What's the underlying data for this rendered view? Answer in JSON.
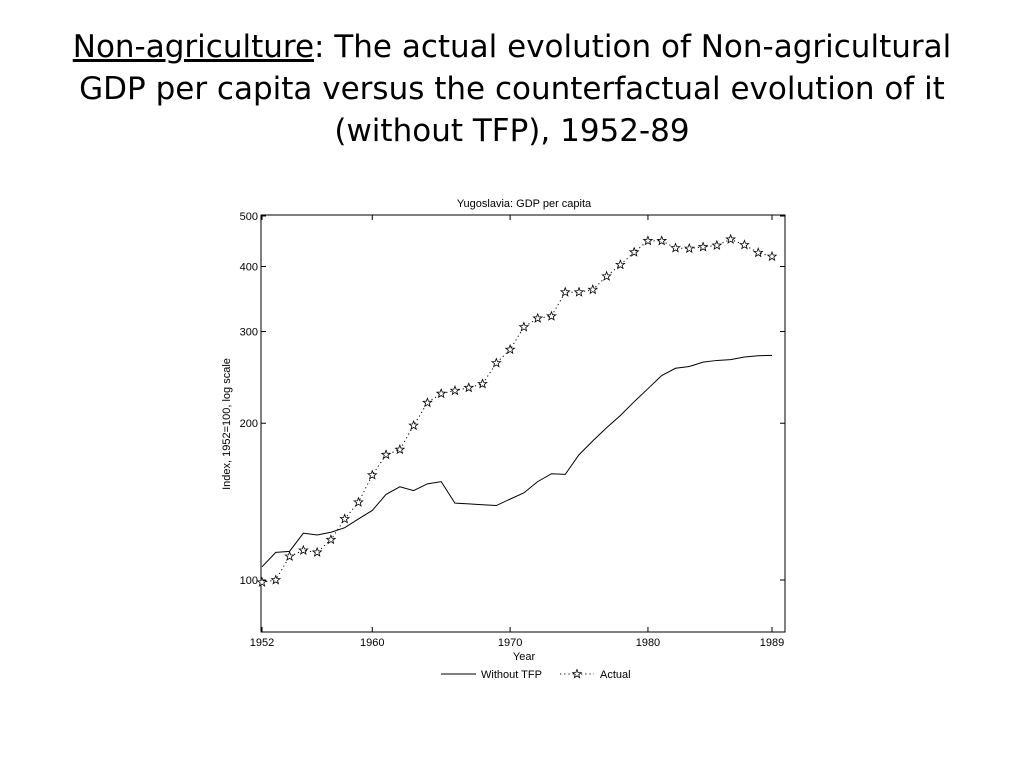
{
  "slide": {
    "title_keyword": "Non-agriculture",
    "title_rest": ": The actual evolution of Non-agricultural GDP per capita versus the counterfactual evolution of it (without TFP), 1952-89"
  },
  "chart_data": {
    "type": "line",
    "title": "Yugoslavia: GDP per capita",
    "xlabel": "Year",
    "ylabel": "Index, 1952=100, log scale",
    "yscale": "log",
    "xlim": [
      1952,
      1989
    ],
    "ylim": [
      80,
      500
    ],
    "xticks": [
      1952,
      1960,
      1970,
      1980,
      1989
    ],
    "yticks": [
      100,
      200,
      300,
      400,
      500
    ],
    "grid": false,
    "legend_position": "bottom-center",
    "x": [
      1952,
      1953,
      1954,
      1955,
      1956,
      1957,
      1958,
      1959,
      1960,
      1961,
      1962,
      1963,
      1964,
      1965,
      1966,
      1967,
      1968,
      1969,
      1970,
      1971,
      1972,
      1973,
      1974,
      1975,
      1976,
      1977,
      1978,
      1979,
      1980,
      1981,
      1982,
      1983,
      1984,
      1985,
      1986,
      1987,
      1988,
      1989
    ],
    "series": [
      {
        "name": "Without TFP",
        "style": "solid",
        "color": "#000000",
        "values": [
          106,
          113,
          113.5,
          123,
          122,
          123.5,
          126,
          131,
          136,
          146,
          151,
          148.5,
          153,
          154.5,
          140.5,
          140,
          139.5,
          139,
          143,
          147,
          154.5,
          160,
          159.5,
          174,
          185,
          196,
          207,
          220,
          233,
          247,
          255,
          257,
          262,
          264,
          265,
          268,
          269.5,
          270
        ]
      },
      {
        "name": "Actual",
        "style": "dotted",
        "marker": "star",
        "color": "#000000",
        "values": [
          99,
          100,
          111,
          114,
          113,
          119.5,
          131,
          141,
          159,
          174,
          178,
          198,
          219,
          228,
          231,
          234,
          238,
          261,
          277,
          306,
          318,
          321,
          357,
          357,
          361,
          383,
          403,
          426,
          448,
          448,
          434,
          433,
          436,
          439,
          451,
          440,
          425,
          418
        ]
      }
    ]
  }
}
